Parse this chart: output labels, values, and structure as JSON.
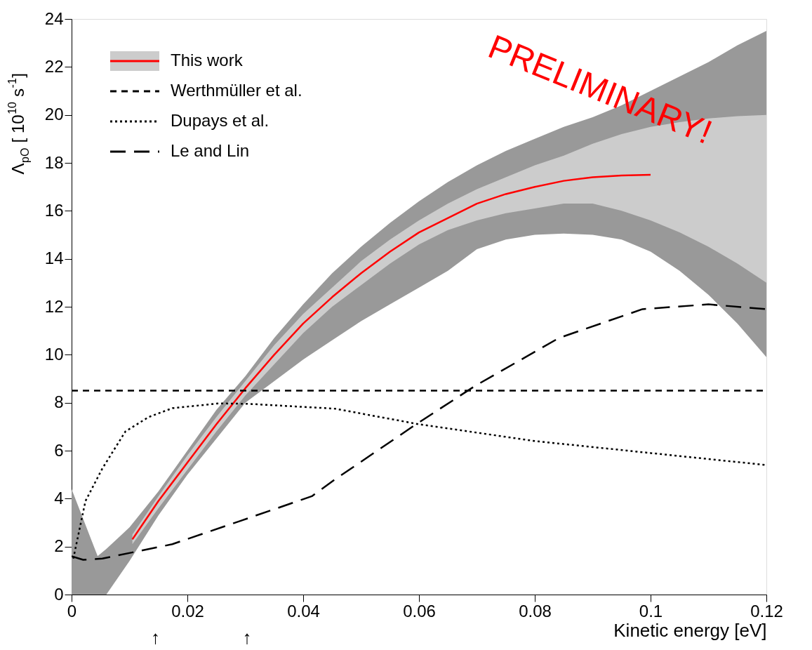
{
  "chart_data": {
    "type": "line",
    "xlabel": "Kinetic energy [eV]",
    "ylabel": "Λ$_{pO}$ [ 10$^{10}$ s$^{-1}$]",
    "xlim": [
      0,
      0.12
    ],
    "xticks": [
      0,
      0.02,
      0.04,
      0.06,
      0.08,
      0.1,
      0.12
    ],
    "ylim": [
      0,
      24
    ],
    "yticks": [
      0,
      2,
      4,
      6,
      8,
      10,
      12,
      14,
      16,
      18,
      20,
      22,
      24
    ],
    "grid": false,
    "legend": "top left",
    "annotations": [
      "PRELIMINARY!",
      "↑",
      "↑"
    ],
    "series": [
      {
        "type": "area",
        "color": "#999999",
        "x": [
          0,
          0.0045,
          0.006,
          0.01,
          0.015,
          0.02,
          0.025,
          0.03,
          0.035,
          0.04,
          0.045,
          0.05,
          0.055,
          0.06,
          0.065,
          0.07,
          0.075,
          0.08,
          0.085,
          0.09,
          0.095,
          0.1,
          0.105,
          0.11,
          0.115,
          0.12
        ],
        "values": [
          null,
          null,
          null,
          null,
          null,
          null,
          null,
          null,
          null,
          null,
          null,
          null,
          null,
          null,
          null,
          null,
          null,
          null,
          null,
          null,
          null,
          null,
          null,
          null,
          null,
          null
        ],
        "lower": [
          0,
          0,
          0,
          1.4,
          3.3,
          5.0,
          6.5,
          8.0,
          8.9,
          9.8,
          10.6,
          11.4,
          12.1,
          12.8,
          13.5,
          14.4,
          14.8,
          15.0,
          15.05,
          15.0,
          14.8,
          14.3,
          13.5,
          12.5,
          11.3,
          9.9
        ],
        "upper": [
          4.4,
          1.6,
          1.9,
          2.8,
          4.3,
          6.0,
          7.7,
          9.1,
          10.7,
          12.1,
          13.4,
          14.5,
          15.5,
          16.4,
          17.2,
          17.9,
          18.5,
          19.0,
          19.5,
          19.9,
          20.4,
          21.0,
          21.6,
          22.2,
          22.9,
          23.5
        ]
      },
      {
        "type": "area",
        "color": "#cccccc",
        "x": [
          0.0105,
          0.015,
          0.02,
          0.025,
          0.03,
          0.035,
          0.04,
          0.045,
          0.05,
          0.055,
          0.06,
          0.065,
          0.07,
          0.075,
          0.08,
          0.085,
          0.09,
          0.095,
          0.1,
          0.105,
          0.11,
          0.115,
          0.12
        ],
        "values": [
          null,
          null,
          null,
          null,
          null,
          null,
          null,
          null,
          null,
          null,
          null,
          null,
          null,
          null,
          null,
          null,
          null,
          null,
          null,
          null,
          null,
          null,
          null
        ],
        "lower": [
          2.1,
          3.6,
          5.2,
          6.8,
          8.3,
          9.6,
          10.9,
          12.0,
          12.9,
          13.8,
          14.6,
          15.2,
          15.6,
          15.9,
          16.1,
          16.3,
          16.3,
          16.0,
          15.6,
          15.1,
          14.5,
          13.8,
          13.0
        ],
        "upper": [
          2.5,
          4.1,
          5.8,
          7.4,
          8.9,
          10.4,
          11.7,
          12.8,
          13.9,
          14.8,
          15.6,
          16.3,
          16.9,
          17.4,
          17.9,
          18.3,
          18.8,
          19.2,
          19.5,
          19.7,
          19.85,
          19.95,
          20.0
        ]
      },
      {
        "name": "This work",
        "color": "#ff0000",
        "line_style": "solid",
        "x": [
          0.0105,
          0.015,
          0.02,
          0.025,
          0.03,
          0.035,
          0.04,
          0.045,
          0.05,
          0.055,
          0.06,
          0.065,
          0.07,
          0.075,
          0.08,
          0.085,
          0.09,
          0.095,
          0.1
        ],
        "values": [
          2.3,
          3.9,
          5.5,
          7.1,
          8.6,
          10.0,
          11.3,
          12.4,
          13.4,
          14.3,
          15.1,
          15.7,
          16.3,
          16.7,
          17.0,
          17.25,
          17.4,
          17.47,
          17.5
        ]
      },
      {
        "name": "Werthmüller et al.",
        "color": "#000000",
        "line_style": "dashed",
        "x": [
          0,
          0.12
        ],
        "values": [
          8.5,
          8.5
        ]
      },
      {
        "name": "Dupays et al.",
        "color": "#000000",
        "line_style": "dotted",
        "x": [
          0.0003,
          0.0024,
          0.0053,
          0.0093,
          0.0133,
          0.0174,
          0.0254,
          0.0307,
          0.0455,
          0.06,
          0.08,
          0.1,
          0.12
        ],
        "values": [
          1.5,
          3.9,
          5.25,
          6.8,
          7.4,
          7.77,
          7.97,
          7.95,
          7.75,
          7.1,
          6.4,
          5.9,
          5.4
        ]
      },
      {
        "name": "Le and Lin",
        "color": "#000000",
        "line_style": "dashed",
        "x": [
          0,
          0.002,
          0.0053,
          0.0174,
          0.0295,
          0.0415,
          0.0455,
          0.0595,
          0.0697,
          0.0842,
          0.0986,
          0.11,
          0.12
        ],
        "values": [
          1.6,
          1.45,
          1.5,
          2.1,
          3.1,
          4.1,
          4.8,
          7.1,
          8.7,
          10.7,
          11.9,
          12.1,
          11.9
        ]
      }
    ]
  }
}
